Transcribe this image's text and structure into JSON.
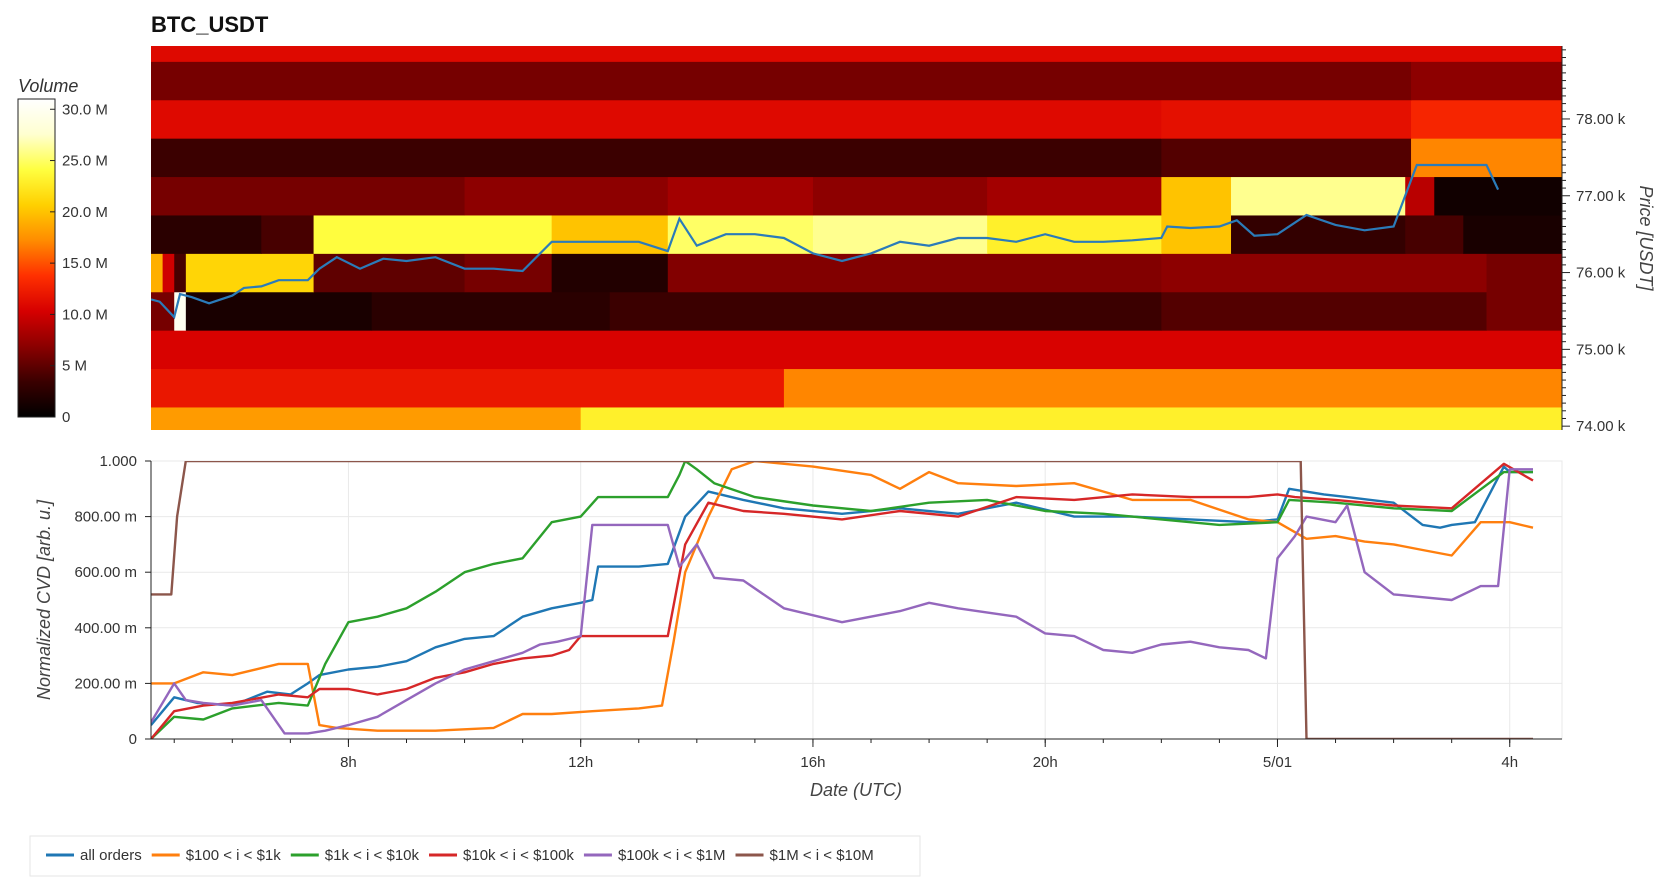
{
  "chart_data": [
    {
      "type": "heatmap",
      "title": "BTC_USDT",
      "ylabel": "Price [USDT]",
      "ylim": [
        73.95,
        78.95
      ],
      "y_ticks": [
        {
          "value": 74.0,
          "label": "74.00 k"
        },
        {
          "value": 75.0,
          "label": "75.00 k"
        },
        {
          "value": 76.0,
          "label": "76.00 k"
        },
        {
          "value": 77.0,
          "label": "77.00 k"
        },
        {
          "value": 78.0,
          "label": "78.00 k"
        }
      ],
      "colorbar": {
        "title": "Volume",
        "range": [
          0,
          31
        ],
        "ticks": [
          {
            "value": 0,
            "label": "0"
          },
          {
            "value": 5,
            "label": "5 M"
          },
          {
            "value": 10,
            "label": "10.0 M"
          },
          {
            "value": 15,
            "label": "15.0 M"
          },
          {
            "value": 20,
            "label": "20.0 M"
          },
          {
            "value": 25,
            "label": "25.0 M"
          },
          {
            "value": 30,
            "label": "30.0 M"
          }
        ],
        "colors": [
          "#000000",
          "#3a0000",
          "#8b0000",
          "#d60000",
          "#ff3000",
          "#ff8c00",
          "#ffd000",
          "#ffff40",
          "#ffffd0",
          "#ffffff"
        ]
      },
      "price_levels": [
        74.0,
        74.5,
        75.0,
        75.5,
        76.0,
        76.5,
        77.0,
        77.5,
        78.0,
        78.5,
        78.85
      ],
      "bands": [
        {
          "y0": 73.95,
          "y1": 74.25,
          "segments": [
            [
              4.6,
              12.0,
              18
            ],
            [
              12.0,
              28.9,
              23
            ]
          ]
        },
        {
          "y0": 74.25,
          "y1": 74.75,
          "segments": [
            [
              4.6,
              15.5,
              12
            ],
            [
              15.5,
              28.9,
              17
            ]
          ]
        },
        {
          "y0": 74.75,
          "y1": 75.25,
          "segments": [
            [
              4.6,
              28.9,
              10.5
            ]
          ]
        },
        {
          "y0": 75.25,
          "y1": 75.75,
          "segments": [
            [
              4.6,
              5.0,
              6
            ],
            [
              5.0,
              5.2,
              30
            ],
            [
              5.2,
              8.4,
              1.5
            ],
            [
              8.4,
              12.5,
              2.5
            ],
            [
              12.5,
              22.0,
              3.5
            ],
            [
              22.0,
              27.6,
              4.5
            ],
            [
              27.6,
              28.9,
              6
            ]
          ]
        },
        {
          "y0": 75.75,
          "y1": 76.25,
          "segments": [
            [
              4.6,
              4.8,
              19
            ],
            [
              4.8,
              5.0,
              10
            ],
            [
              5.0,
              5.2,
              4
            ],
            [
              5.2,
              7.4,
              21
            ],
            [
              7.4,
              10.0,
              5
            ],
            [
              10.0,
              11.5,
              6
            ],
            [
              11.5,
              13.5,
              2
            ],
            [
              13.5,
              22.0,
              6.5
            ],
            [
              22.0,
              27.6,
              7
            ],
            [
              27.6,
              28.9,
              6
            ]
          ]
        },
        {
          "y0": 76.25,
          "y1": 76.75,
          "segments": [
            [
              4.6,
              6.5,
              2.5
            ],
            [
              6.5,
              7.4,
              4
            ],
            [
              7.4,
              11.5,
              24
            ],
            [
              11.5,
              13.5,
              20
            ],
            [
              13.5,
              16.0,
              25
            ],
            [
              16.0,
              19.0,
              26
            ],
            [
              19.0,
              22.0,
              23
            ],
            [
              22.0,
              23.2,
              20
            ],
            [
              23.2,
              26.2,
              3
            ],
            [
              26.2,
              27.2,
              4
            ],
            [
              27.2,
              28.9,
              1.5
            ]
          ]
        },
        {
          "y0": 76.75,
          "y1": 77.25,
          "segments": [
            [
              4.6,
              10.0,
              6
            ],
            [
              10.0,
              13.5,
              7
            ],
            [
              13.5,
              16.0,
              8
            ],
            [
              16.0,
              19.0,
              7
            ],
            [
              19.0,
              22.0,
              8
            ],
            [
              22.0,
              23.2,
              20
            ],
            [
              23.2,
              26.2,
              26
            ],
            [
              26.2,
              26.7,
              9
            ],
            [
              26.7,
              28.9,
              1
            ]
          ]
        },
        {
          "y0": 77.25,
          "y1": 77.75,
          "segments": [
            [
              4.6,
              22.0,
              3.5
            ],
            [
              22.0,
              26.3,
              4.5
            ],
            [
              26.3,
              28.9,
              17
            ]
          ]
        },
        {
          "y0": 77.75,
          "y1": 78.25,
          "segments": [
            [
              4.6,
              22.0,
              11
            ],
            [
              22.0,
              26.3,
              11.5
            ],
            [
              26.3,
              28.9,
              13
            ]
          ]
        },
        {
          "y0": 78.25,
          "y1": 78.75,
          "segments": [
            [
              4.6,
              26.3,
              6
            ],
            [
              26.3,
              28.9,
              7
            ]
          ]
        },
        {
          "y0": 78.75,
          "y1": 78.95,
          "segments": [
            [
              4.6,
              28.9,
              11
            ]
          ]
        }
      ],
      "price_series": {
        "x": [
          4.6,
          4.75,
          5.0,
          5.1,
          5.3,
          5.6,
          6.0,
          6.2,
          6.5,
          6.8,
          7.0,
          7.3,
          7.5,
          7.8,
          8.2,
          8.6,
          9.0,
          9.5,
          10.0,
          10.5,
          11.0,
          11.5,
          11.8,
          12.3,
          13.0,
          13.5,
          13.7,
          14.0,
          14.5,
          15.0,
          15.5,
          16.0,
          16.5,
          17.0,
          17.5,
          18.0,
          18.5,
          19.0,
          19.5,
          20.0,
          20.5,
          21.0,
          21.5,
          22.0,
          22.1,
          22.5,
          23.0,
          23.3,
          23.6,
          24.0,
          24.5,
          25.0,
          25.5,
          26.0,
          26.3,
          26.4,
          27.0,
          27.6,
          27.8
        ],
        "y": [
          75.65,
          75.62,
          75.42,
          75.72,
          75.68,
          75.6,
          75.7,
          75.8,
          75.82,
          75.9,
          75.9,
          75.9,
          76.05,
          76.2,
          76.05,
          76.18,
          76.15,
          76.2,
          76.05,
          76.05,
          76.02,
          76.4,
          76.4,
          76.4,
          76.4,
          76.28,
          76.7,
          76.35,
          76.5,
          76.5,
          76.45,
          76.25,
          76.15,
          76.25,
          76.4,
          76.35,
          76.45,
          76.45,
          76.4,
          76.5,
          76.4,
          76.4,
          76.42,
          76.45,
          76.6,
          76.58,
          76.6,
          76.68,
          76.48,
          76.5,
          76.75,
          76.62,
          76.55,
          76.6,
          77.2,
          77.4,
          77.4,
          77.4,
          77.08
        ]
      }
    },
    {
      "type": "line",
      "xlabel": "Date (UTC)",
      "ylabel": "Normalized CVD [arb. u.]",
      "xlim": [
        4.6,
        28.9
      ],
      "ylim": [
        0,
        1.0
      ],
      "x_ticks": [
        {
          "value": 8,
          "label": "8h"
        },
        {
          "value": 12,
          "label": "12h"
        },
        {
          "value": 16,
          "label": "16h"
        },
        {
          "value": 20,
          "label": "20h"
        },
        {
          "value": 24,
          "label": "5/01"
        },
        {
          "value": 28,
          "label": "4h"
        }
      ],
      "y_ticks": [
        {
          "value": 0,
          "label": "0"
        },
        {
          "value": 0.2,
          "label": "200.00 m"
        },
        {
          "value": 0.4,
          "label": "400.00 m"
        },
        {
          "value": 0.6,
          "label": "600.00 m"
        },
        {
          "value": 0.8,
          "label": "800.00 m"
        },
        {
          "value": 1.0,
          "label": "1.000"
        }
      ],
      "grid": true,
      "legend_position": "bottom",
      "series": [
        {
          "name": "all orders",
          "color": "#1f77b4",
          "x": [
            4.6,
            5.0,
            5.4,
            6.0,
            6.6,
            7.0,
            7.3,
            7.5,
            8.0,
            8.5,
            9.0,
            9.5,
            10.0,
            10.5,
            11.0,
            11.5,
            12.0,
            12.2,
            12.3,
            13.0,
            13.5,
            13.8,
            14.2,
            14.8,
            15.5,
            16.5,
            17.5,
            18.5,
            19.5,
            20.5,
            21.5,
            22.5,
            23.5,
            24.0,
            24.2,
            24.8,
            25.2,
            25.6,
            26.0,
            26.5,
            26.8,
            27.0,
            27.4,
            27.9,
            28.0,
            28.4
          ],
          "y": [
            0.05,
            0.15,
            0.13,
            0.12,
            0.17,
            0.16,
            0.2,
            0.23,
            0.25,
            0.26,
            0.28,
            0.33,
            0.36,
            0.37,
            0.44,
            0.47,
            0.49,
            0.5,
            0.62,
            0.62,
            0.63,
            0.8,
            0.89,
            0.86,
            0.83,
            0.81,
            0.83,
            0.81,
            0.85,
            0.8,
            0.8,
            0.79,
            0.78,
            0.79,
            0.9,
            0.88,
            0.87,
            0.86,
            0.85,
            0.77,
            0.76,
            0.77,
            0.78,
            0.98,
            0.96,
            0.96
          ]
        },
        {
          "name": "$100 < i < $1k",
          "color": "#ff7f0e",
          "x": [
            4.6,
            5.0,
            5.5,
            6.0,
            6.8,
            7.3,
            7.5,
            7.8,
            8.5,
            9.5,
            10.5,
            11.0,
            11.5,
            12.2,
            13.0,
            13.4,
            13.6,
            13.8,
            14.2,
            14.6,
            15.0,
            16.0,
            17.0,
            17.5,
            18.0,
            18.5,
            19.5,
            20.5,
            21.5,
            22.5,
            23.5,
            24.0,
            24.5,
            25.0,
            25.5,
            26.0,
            26.5,
            27.0,
            27.5,
            28.0,
            28.4
          ],
          "y": [
            0.2,
            0.2,
            0.24,
            0.23,
            0.27,
            0.27,
            0.05,
            0.04,
            0.03,
            0.03,
            0.04,
            0.09,
            0.09,
            0.1,
            0.11,
            0.12,
            0.35,
            0.6,
            0.8,
            0.97,
            1.0,
            0.98,
            0.95,
            0.9,
            0.96,
            0.92,
            0.91,
            0.92,
            0.86,
            0.86,
            0.79,
            0.78,
            0.72,
            0.73,
            0.71,
            0.7,
            0.68,
            0.66,
            0.78,
            0.78,
            0.76
          ]
        },
        {
          "name": "$1k < i < $10k",
          "color": "#2ca02c",
          "x": [
            4.6,
            5.0,
            5.5,
            6.0,
            6.8,
            7.3,
            7.6,
            8.0,
            8.5,
            9.0,
            9.5,
            10.0,
            10.5,
            11.0,
            11.5,
            12.0,
            12.3,
            13.5,
            13.7,
            13.8,
            14.0,
            14.3,
            15.0,
            16.0,
            17.0,
            18.0,
            19.0,
            20.0,
            21.0,
            22.0,
            23.0,
            24.0,
            24.2,
            25.0,
            26.0,
            27.0,
            27.9,
            28.4
          ],
          "y": [
            0.0,
            0.08,
            0.07,
            0.11,
            0.13,
            0.12,
            0.27,
            0.42,
            0.44,
            0.47,
            0.53,
            0.6,
            0.63,
            0.65,
            0.78,
            0.8,
            0.87,
            0.87,
            0.95,
            1.0,
            0.97,
            0.92,
            0.87,
            0.84,
            0.82,
            0.85,
            0.86,
            0.82,
            0.81,
            0.79,
            0.77,
            0.78,
            0.86,
            0.85,
            0.83,
            0.82,
            0.96,
            0.96
          ]
        },
        {
          "name": "$10k < i < $100k",
          "color": "#d62728",
          "x": [
            4.6,
            5.0,
            5.5,
            6.0,
            6.8,
            7.3,
            7.5,
            8.0,
            8.5,
            9.0,
            9.5,
            10.0,
            10.5,
            11.0,
            11.5,
            11.8,
            12.0,
            12.3,
            13.0,
            13.5,
            13.8,
            14.2,
            14.8,
            15.5,
            16.5,
            17.5,
            18.5,
            19.5,
            20.5,
            21.5,
            22.5,
            23.5,
            24.0,
            24.3,
            25.0,
            25.5,
            26.0,
            27.0,
            27.9,
            28.4
          ],
          "y": [
            0.0,
            0.1,
            0.12,
            0.13,
            0.16,
            0.15,
            0.18,
            0.18,
            0.16,
            0.18,
            0.22,
            0.24,
            0.27,
            0.29,
            0.3,
            0.32,
            0.37,
            0.37,
            0.37,
            0.37,
            0.7,
            0.85,
            0.82,
            0.81,
            0.79,
            0.82,
            0.8,
            0.87,
            0.86,
            0.88,
            0.87,
            0.87,
            0.88,
            0.87,
            0.86,
            0.85,
            0.84,
            0.83,
            0.99,
            0.93
          ]
        },
        {
          "name": "$100k < i < $1M",
          "color": "#9467bd",
          "x": [
            4.6,
            5.0,
            5.2,
            5.5,
            6.0,
            6.5,
            6.9,
            7.3,
            7.6,
            8.0,
            8.5,
            9.0,
            9.5,
            10.0,
            10.5,
            11.0,
            11.3,
            11.6,
            12.0,
            12.2,
            13.0,
            13.5,
            13.7,
            14.0,
            14.3,
            14.8,
            15.5,
            16.5,
            17.5,
            18.0,
            18.5,
            19.5,
            20.0,
            20.5,
            21.0,
            21.5,
            22.0,
            22.5,
            23.0,
            23.5,
            23.8,
            24.0,
            24.3,
            24.5,
            25.0,
            25.2,
            25.5,
            26.0,
            26.5,
            27.0,
            27.5,
            27.8,
            28.0,
            28.4
          ],
          "y": [
            0.06,
            0.2,
            0.14,
            0.13,
            0.12,
            0.14,
            0.02,
            0.02,
            0.03,
            0.05,
            0.08,
            0.14,
            0.2,
            0.25,
            0.28,
            0.31,
            0.34,
            0.35,
            0.37,
            0.77,
            0.77,
            0.77,
            0.62,
            0.7,
            0.58,
            0.57,
            0.47,
            0.42,
            0.46,
            0.49,
            0.47,
            0.44,
            0.38,
            0.37,
            0.32,
            0.31,
            0.34,
            0.35,
            0.33,
            0.32,
            0.29,
            0.65,
            0.73,
            0.8,
            0.78,
            0.84,
            0.6,
            0.52,
            0.51,
            0.5,
            0.55,
            0.55,
            0.97,
            0.97
          ]
        },
        {
          "name": "$1M < i < $10M",
          "color": "#8c564b",
          "x": [
            4.6,
            4.95,
            5.05,
            5.2,
            24.4,
            24.5,
            28.4
          ],
          "y": [
            0.52,
            0.52,
            0.8,
            1.0,
            1.0,
            0.0,
            0.0
          ]
        }
      ]
    }
  ]
}
